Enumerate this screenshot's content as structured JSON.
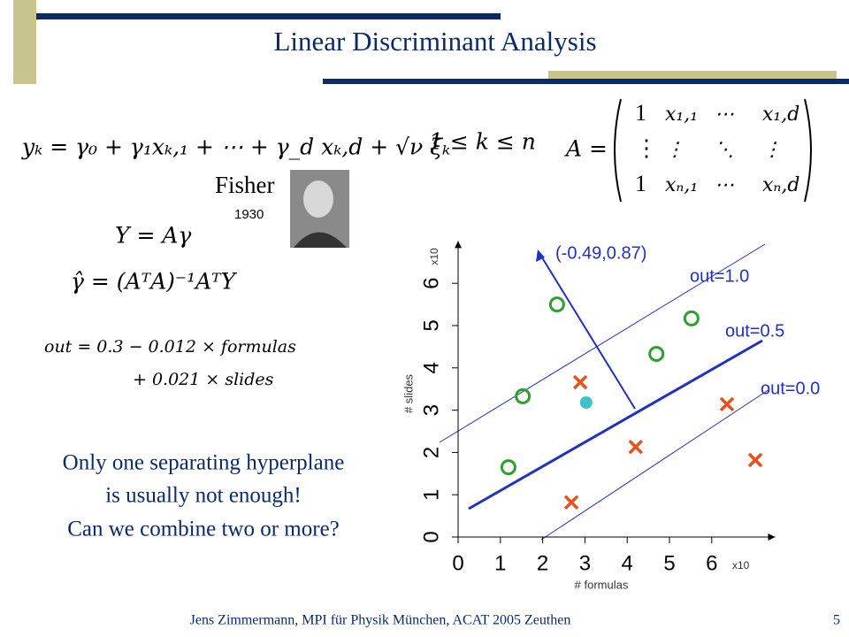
{
  "header": {
    "title": "Linear Discriminant Analysis"
  },
  "equations": {
    "model": "yₖ = γ₀ + γ₁xₖ,₁ + ⋯ + γ_d xₖ,d + √ν ξₖ",
    "range": "1 ≤ k ≤ n",
    "matrix_lhs": "A =",
    "matrix_rows": [
      [
        "1",
        "x₁,₁",
        "⋯",
        "x₁,d"
      ],
      [
        "⋮",
        "⋮",
        "⋱",
        "⋮"
      ],
      [
        "1",
        "xₙ,₁",
        "⋯",
        "xₙ,d"
      ]
    ],
    "linear": "Y = Aγ",
    "solution": "γ̂ = (AᵀA)⁻¹AᵀY",
    "out_1": "out = 0.3 − 0.012 × formulas",
    "out_2": "+ 0.021 × slides"
  },
  "fisher": {
    "name": "Fisher",
    "year": "1930"
  },
  "note": [
    "Only one separating hyperplane",
    "is usually not enough!",
    "Can we combine two or more?"
  ],
  "plot": {
    "type": "scatter",
    "xlabel": "# formulas",
    "ylabel": "# slides",
    "xunit": "x10",
    "yunit": "x10",
    "xlim": [
      0,
      7.5
    ],
    "ylim": [
      0,
      7
    ],
    "xticks": [
      0,
      1,
      2,
      3,
      4,
      5,
      6
    ],
    "yticks": [
      0,
      1,
      2,
      3,
      4,
      5,
      6
    ],
    "series": [
      {
        "marker": "circle",
        "color": "#2ca02c",
        "x": [
          1.19,
          1.53,
          2.34,
          4.69,
          5.52
        ],
        "y": [
          1.65,
          3.33,
          5.5,
          4.33,
          5.17
        ]
      },
      {
        "marker": "cross",
        "color": "#e8501e",
        "x": [
          2.89,
          2.68,
          4.2,
          6.36,
          7.03
        ],
        "y": [
          3.66,
          0.82,
          2.13,
          3.14,
          1.82
        ]
      },
      {
        "marker": "dot",
        "color": "#40c0c8",
        "x": [
          3.03
        ],
        "y": [
          3.18
        ]
      }
    ],
    "annotations": [
      "(-0.49,0.87)",
      "out=1.0",
      "out=0.5",
      "out=0.0"
    ]
  },
  "footer": {
    "text": "Jens Zimmermann, MPI für Physik München, ACAT 2005 Zeuthen",
    "page": "5"
  }
}
